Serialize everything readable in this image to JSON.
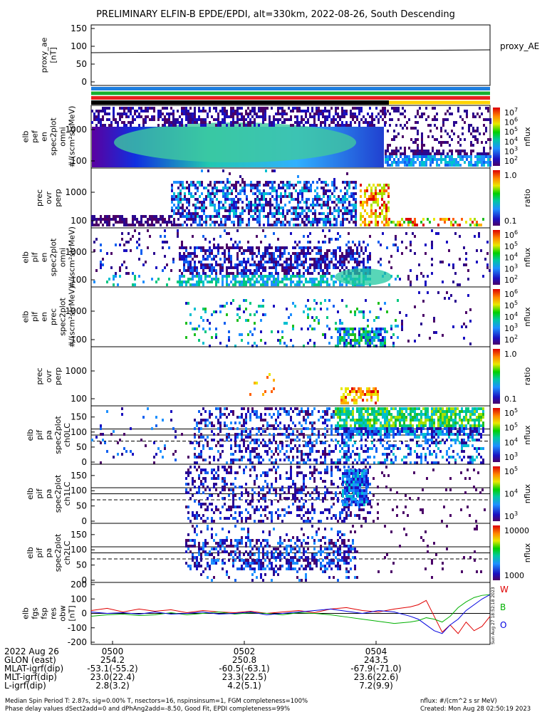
{
  "title": "PRELIMINARY ELFIN-B EPDE/EPDI, alt=330km, 2022-08-26, South Descending",
  "chart_data": [
    {
      "id": "proxy_ae",
      "type": "line",
      "ylabel": [
        "proxy_ae",
        "[nT]"
      ],
      "legend": "proxy_AE",
      "ylim": [
        0,
        150
      ],
      "yticks": [
        "150",
        "100",
        "50",
        "0"
      ],
      "series": [
        {
          "name": "proxy_AE",
          "x": [
            0,
            1
          ],
          "values": [
            82,
            90
          ]
        }
      ]
    },
    {
      "id": "status_bars",
      "type": "bar",
      "colors": [
        "#1f7fe0",
        "#18b030",
        "#e82020",
        "#ffd400"
      ]
    },
    {
      "id": "elb_pef_en_omni",
      "type": "heatmap",
      "ylabel": [
        "elb",
        "pef",
        "en",
        "spec2plot",
        "omni",
        "#/(scm²strMeV)"
      ],
      "yticks": [
        "1000",
        "100"
      ],
      "colorbar": {
        "label": "nflux",
        "ticks": [
          "10",
          "10",
          "10",
          "10",
          "10",
          "10"
        ],
        "exps": [
          "7",
          "6",
          "5",
          "4",
          "3",
          "2"
        ]
      }
    },
    {
      "id": "elb_pef_prec_ovr_perp",
      "type": "heatmap",
      "ylabel": [
        "prec",
        "ovr",
        "perp"
      ],
      "yticks": [
        "1000",
        "100"
      ],
      "colorbar": {
        "label": "ratio",
        "ticks": [
          "1.0",
          "0.1"
        ],
        "exps": []
      }
    },
    {
      "id": "elb_pif_en_omni",
      "type": "heatmap",
      "ylabel": [
        "elb",
        "pif",
        "en",
        "spec2plot",
        "omni",
        "#/(scm²strMeV)"
      ],
      "yticks": [
        "1000",
        "100"
      ],
      "colorbar": {
        "label": "nflux",
        "ticks": [
          "10",
          "10",
          "10",
          "10",
          "10"
        ],
        "exps": [
          "6",
          "5",
          "4",
          "3",
          "2"
        ]
      }
    },
    {
      "id": "elb_pif_en_prec",
      "type": "heatmap",
      "ylabel": [
        "elb",
        "pif",
        "en",
        "prec",
        "spec2plot",
        "#/(scm²strMeV)"
      ],
      "yticks": [
        "1000",
        "100"
      ],
      "colorbar": {
        "label": "nflux",
        "ticks": [
          "10",
          "10",
          "10",
          "10",
          "10"
        ],
        "exps": [
          "6",
          "5",
          "4",
          "3",
          "2"
        ]
      }
    },
    {
      "id": "elb_pif_prec_ovr_perp",
      "type": "heatmap",
      "ylabel": [
        "prec",
        "ovr",
        "perp"
      ],
      "yticks": [
        "1000",
        "100"
      ],
      "colorbar": {
        "label": "ratio",
        "ticks": [
          "1.0",
          "0.1"
        ],
        "exps": []
      }
    },
    {
      "id": "elb_pif_pa_ch0LC",
      "type": "heatmap",
      "ylabel": [
        "elb",
        "pif",
        "pa",
        "spec2plot",
        "ch0LC"
      ],
      "ylim": [
        0,
        180
      ],
      "yticks": [
        "150",
        "100",
        "50",
        "0"
      ],
      "colorbar": {
        "label": "nflux",
        "ticks": [
          "10",
          "10",
          "10",
          "10"
        ],
        "exps": [
          "5",
          "5",
          "4",
          "3"
        ]
      }
    },
    {
      "id": "elb_pif_pa_ch1LC",
      "type": "heatmap",
      "ylabel": [
        "elb",
        "pif",
        "pa",
        "spec2plot",
        "ch1LC"
      ],
      "ylim": [
        0,
        180
      ],
      "yticks": [
        "150",
        "100",
        "50",
        "0"
      ],
      "colorbar": {
        "label": "nflux",
        "ticks": [
          "10",
          "10",
          "10"
        ],
        "exps": [
          "5",
          "4",
          "3"
        ]
      }
    },
    {
      "id": "elb_pif_pa_ch2LC",
      "type": "heatmap",
      "ylabel": [
        "elb",
        "pif",
        "pa",
        "spec2plot",
        "ch2LC"
      ],
      "ylim": [
        0,
        180
      ],
      "yticks": [
        "150",
        "100",
        "50",
        "0"
      ],
      "colorbar": {
        "label": "nflux",
        "ticks": [
          "10000",
          "1000"
        ],
        "exps": []
      }
    },
    {
      "id": "elb_fgs_fsp_res_obw",
      "type": "line",
      "ylabel": [
        "elb",
        "fgs",
        "fsp",
        "res",
        "obw",
        "[nT]"
      ],
      "ylim": [
        -200,
        200
      ],
      "yticks": [
        "200",
        "100",
        "0",
        "-100",
        "-200"
      ],
      "legend": [
        "W",
        "B",
        "O"
      ],
      "legend_colors": [
        "#e00000",
        "#00b000",
        "#0000e0"
      ],
      "series": [
        {
          "name": "W",
          "x": [
            0,
            0.04,
            0.08,
            0.12,
            0.16,
            0.2,
            0.24,
            0.28,
            0.32,
            0.36,
            0.4,
            0.44,
            0.48,
            0.52,
            0.56,
            0.6,
            0.64,
            0.68,
            0.72,
            0.76,
            0.8,
            0.82,
            0.84,
            0.86,
            0.88,
            0.9,
            0.92,
            0.94,
            0.96,
            0.98,
            1.0
          ],
          "values": [
            20,
            35,
            10,
            30,
            15,
            25,
            5,
            20,
            10,
            5,
            15,
            0,
            10,
            20,
            5,
            30,
            40,
            20,
            10,
            30,
            45,
            60,
            90,
            -20,
            -130,
            -80,
            -140,
            -60,
            -120,
            -90,
            -20
          ]
        },
        {
          "name": "B",
          "x": [
            0,
            0.04,
            0.08,
            0.12,
            0.16,
            0.2,
            0.24,
            0.28,
            0.32,
            0.36,
            0.4,
            0.44,
            0.48,
            0.52,
            0.56,
            0.6,
            0.64,
            0.68,
            0.72,
            0.76,
            0.8,
            0.82,
            0.84,
            0.86,
            0.88,
            0.9,
            0.92,
            0.94,
            0.96,
            0.98,
            1.0
          ],
          "values": [
            -20,
            -10,
            -5,
            -15,
            -10,
            5,
            -10,
            0,
            10,
            -5,
            5,
            0,
            -10,
            5,
            0,
            -10,
            -25,
            -40,
            -55,
            -70,
            -60,
            -50,
            -30,
            -40,
            -60,
            -20,
            40,
            80,
            110,
            125,
            130
          ]
        },
        {
          "name": "O",
          "x": [
            0,
            0.04,
            0.08,
            0.12,
            0.16,
            0.2,
            0.24,
            0.28,
            0.32,
            0.36,
            0.4,
            0.44,
            0.48,
            0.52,
            0.56,
            0.6,
            0.64,
            0.68,
            0.72,
            0.76,
            0.8,
            0.82,
            0.84,
            0.86,
            0.88,
            0.9,
            0.92,
            0.94,
            0.96,
            0.98,
            1.0
          ],
          "values": [
            10,
            0,
            5,
            -5,
            10,
            -5,
            0,
            10,
            -5,
            0,
            10,
            -10,
            0,
            10,
            20,
            30,
            15,
            0,
            20,
            10,
            -20,
            -40,
            -80,
            -120,
            -140,
            -80,
            -40,
            20,
            60,
            100,
            130
          ]
        }
      ]
    }
  ],
  "xaxis": {
    "tick_labels": [
      "0500",
      "0502",
      "0504"
    ],
    "rows": [
      {
        "label": "2022 Aug 26",
        "values": [
          "",
          "",
          ""
        ]
      },
      {
        "label": "GLON (east)",
        "values": [
          "254.2",
          "250.8",
          "243.5"
        ]
      },
      {
        "label": "MLAT-igrf(dip)",
        "values": [
          "-53.1(-55.2)",
          "-60.5(-63.1)",
          "-67.9(-71.0)"
        ]
      },
      {
        "label": "MLT-igrf(dip)",
        "values": [
          "23.0(22.4)",
          "23.3(22.5)",
          "23.6(22.6)"
        ]
      },
      {
        "label": "L-igrf(dip)",
        "values": [
          "2.8(3.2)",
          "4.2(5.1)",
          "7.2(9.9)"
        ]
      }
    ]
  },
  "footer": {
    "line1_left": "Median Spin Period T: 2.87s, sig=0.00% T, nsectors=16, nspinsinsum=1, FGM completeness=100%",
    "line2_left": "Phase delay values dSect2add=0 and dPhAng2add=-8.50, Good Fit, EPDI completeness=99%",
    "line1_right": "nflux: #/(cm^2 s sr MeV)",
    "line2_right": "Created: Mon Aug 28 02:50:19 2023",
    "side_stamp": "Sun Aug 27 18:52:18 2023"
  }
}
